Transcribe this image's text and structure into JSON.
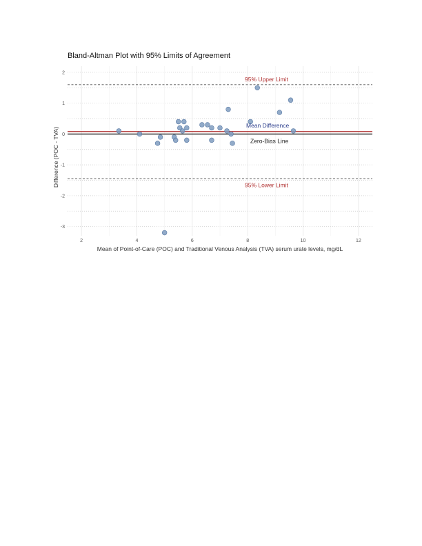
{
  "chart_data": {
    "type": "scatter",
    "title": "Bland-Altman Plot with 95% Limits of Agreement",
    "xlabel": "Mean of Point-of-Care (POC) and Traditional Venous Analysis (TVA) serum urate levels, mg/dL",
    "ylabel": "Difference (POC - TVA)",
    "xlim": [
      1.5,
      12.5
    ],
    "ylim": [
      -3.3,
      2.2
    ],
    "x_ticks": [
      2,
      4,
      6,
      8,
      10,
      12
    ],
    "y_ticks": [
      -3,
      -2,
      -1,
      0,
      1,
      2
    ],
    "grid": true,
    "points": [
      {
        "x": 3.35,
        "y": 0.1
      },
      {
        "x": 4.1,
        "y": 0.0
      },
      {
        "x": 4.75,
        "y": -0.3
      },
      {
        "x": 4.85,
        "y": -0.1
      },
      {
        "x": 5.0,
        "y": -3.2
      },
      {
        "x": 5.35,
        "y": -0.1
      },
      {
        "x": 5.4,
        "y": -0.2
      },
      {
        "x": 5.5,
        "y": 0.4
      },
      {
        "x": 5.55,
        "y": 0.2
      },
      {
        "x": 5.65,
        "y": 0.1
      },
      {
        "x": 5.7,
        "y": 0.4
      },
      {
        "x": 5.8,
        "y": 0.2
      },
      {
        "x": 5.8,
        "y": -0.2
      },
      {
        "x": 6.35,
        "y": 0.3
      },
      {
        "x": 6.55,
        "y": 0.3
      },
      {
        "x": 6.7,
        "y": 0.2
      },
      {
        "x": 6.7,
        "y": -0.2
      },
      {
        "x": 7.0,
        "y": 0.2
      },
      {
        "x": 7.25,
        "y": 0.1
      },
      {
        "x": 7.3,
        "y": 0.8
      },
      {
        "x": 7.4,
        "y": 0.0
      },
      {
        "x": 7.45,
        "y": -0.3
      },
      {
        "x": 8.1,
        "y": 0.4
      },
      {
        "x": 8.35,
        "y": 1.5
      },
      {
        "x": 9.15,
        "y": 0.7
      },
      {
        "x": 9.55,
        "y": 1.1
      },
      {
        "x": 9.65,
        "y": 0.1
      }
    ],
    "lines": [
      {
        "label": "95% Upper Limit",
        "y": 1.6,
        "style": "dashed",
        "color": "#555555",
        "label_color": "#b03030"
      },
      {
        "label": "Mean Difference",
        "y": 0.08,
        "style": "solid",
        "color": "#b03030",
        "label_color": "#2c3e8c"
      },
      {
        "label": "Zero-Bias Line",
        "y": 0.0,
        "style": "solid",
        "color": "#222222",
        "label_color": "#222222"
      },
      {
        "label": "95% Lower Limit",
        "y": -1.45,
        "style": "dashed",
        "color": "#555555",
        "label_color": "#b03030"
      }
    ],
    "point_color": "#7f9cc0",
    "point_stroke": "#5a7aa5"
  }
}
